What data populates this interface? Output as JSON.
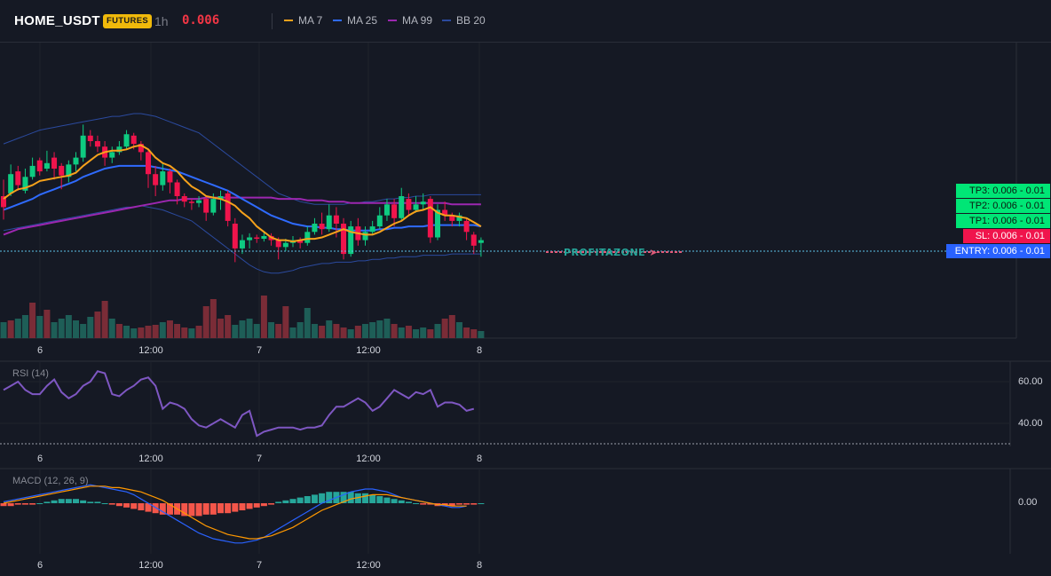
{
  "header": {
    "symbol": "HOME_USDT",
    "badge": "FUTURES",
    "timeframe": "1h",
    "last_price": "0.006"
  },
  "legend": [
    {
      "label": "MA 7",
      "color": "#f7a21b"
    },
    {
      "label": "MA 25",
      "color": "#2f6bff"
    },
    {
      "label": "MA 99",
      "color": "#9c27b0"
    },
    {
      "label": "BB 20",
      "color": "#2b4a9e"
    }
  ],
  "tags": {
    "tp3": "TP3: 0.006 - 0.01",
    "tp2": "TP2: 0.006 - 0.01",
    "tp1": "TP1: 0.006 - 0.01",
    "sl": "SL: 0.006 - 0.01",
    "entry": "ENTRY: 0.006 - 0.01"
  },
  "watermark": "PROFITAZONE",
  "panes": {
    "rsi": {
      "label": "RSI (14)",
      "ticks": [
        "60.00",
        "40.00"
      ]
    },
    "macd": {
      "label": "MACD (12, 26, 9)",
      "ticks": [
        "0.00"
      ]
    }
  },
  "time_labels": [
    "6",
    "12:00",
    "7",
    "12:00",
    "8"
  ],
  "chart_data": {
    "type": "candlestick",
    "interval": "1h",
    "price_note": "all prices display as 0.006 at 3-decimal precision",
    "candles": [
      {
        "o": 40,
        "c": 32,
        "h": 52,
        "l": 23
      },
      {
        "o": 42,
        "c": 56,
        "h": 63,
        "l": 40
      },
      {
        "o": 58,
        "c": 48,
        "h": 62,
        "l": 44
      },
      {
        "o": 44,
        "c": 54,
        "h": 60,
        "l": 42
      },
      {
        "o": 54,
        "c": 62,
        "h": 68,
        "l": 52
      },
      {
        "o": 66,
        "c": 58,
        "h": 68,
        "l": 55
      },
      {
        "o": 60,
        "c": 64,
        "h": 73,
        "l": 58
      },
      {
        "o": 68,
        "c": 60,
        "h": 72,
        "l": 52
      },
      {
        "o": 62,
        "c": 55,
        "h": 64,
        "l": 45
      },
      {
        "o": 54,
        "c": 63,
        "h": 66,
        "l": 50
      },
      {
        "o": 63,
        "c": 68,
        "h": 72,
        "l": 58
      },
      {
        "o": 68,
        "c": 84,
        "h": 92,
        "l": 65
      },
      {
        "o": 84,
        "c": 80,
        "h": 88,
        "l": 76
      },
      {
        "o": 80,
        "c": 76,
        "h": 84,
        "l": 72
      },
      {
        "o": 76,
        "c": 68,
        "h": 80,
        "l": 62
      },
      {
        "o": 68,
        "c": 72,
        "h": 76,
        "l": 64
      },
      {
        "o": 72,
        "c": 76,
        "h": 80,
        "l": 70
      },
      {
        "o": 76,
        "c": 85,
        "h": 88,
        "l": 74
      },
      {
        "o": 84,
        "c": 78,
        "h": 86,
        "l": 74
      },
      {
        "o": 78,
        "c": 72,
        "h": 80,
        "l": 66
      },
      {
        "o": 72,
        "c": 56,
        "h": 74,
        "l": 46
      },
      {
        "o": 56,
        "c": 48,
        "h": 62,
        "l": 40
      },
      {
        "o": 48,
        "c": 58,
        "h": 64,
        "l": 44
      },
      {
        "o": 58,
        "c": 50,
        "h": 60,
        "l": 42
      },
      {
        "o": 50,
        "c": 40,
        "h": 52,
        "l": 34
      },
      {
        "o": 40,
        "c": 36,
        "h": 42,
        "l": 32
      },
      {
        "o": 36,
        "c": 35,
        "h": 38,
        "l": 30
      },
      {
        "o": 35,
        "c": 37,
        "h": 40,
        "l": 32
      },
      {
        "o": 38,
        "c": 28,
        "h": 40,
        "l": 22
      },
      {
        "o": 28,
        "c": 38,
        "h": 42,
        "l": 26
      },
      {
        "o": 38,
        "c": 40,
        "h": 44,
        "l": 30
      },
      {
        "o": 42,
        "c": 22,
        "h": 44,
        "l": 18
      },
      {
        "o": 20,
        "c": 2,
        "h": 24,
        "l": -8
      },
      {
        "o": 2,
        "c": 8,
        "h": 12,
        "l": -2
      },
      {
        "o": 8,
        "c": 10,
        "h": 13,
        "l": 2
      },
      {
        "o": 10,
        "c": 9,
        "h": 12,
        "l": 6
      },
      {
        "o": 9,
        "c": 11,
        "h": 14,
        "l": 7
      },
      {
        "o": 11,
        "c": 8,
        "h": 13,
        "l": 4
      },
      {
        "o": 8,
        "c": 3,
        "h": 10,
        "l": -6
      },
      {
        "o": 3,
        "c": 6,
        "h": 9,
        "l": 0
      },
      {
        "o": 6,
        "c": 8,
        "h": 11,
        "l": 3
      },
      {
        "o": 8,
        "c": 6,
        "h": 10,
        "l": 2
      },
      {
        "o": 6,
        "c": 14,
        "h": 18,
        "l": 4
      },
      {
        "o": 14,
        "c": 20,
        "h": 24,
        "l": 12
      },
      {
        "o": 20,
        "c": 16,
        "h": 28,
        "l": 12
      },
      {
        "o": 16,
        "c": 26,
        "h": 34,
        "l": 14
      },
      {
        "o": 26,
        "c": 20,
        "h": 32,
        "l": 10
      },
      {
        "o": 20,
        "c": -2,
        "h": 24,
        "l": -6
      },
      {
        "o": -2,
        "c": 18,
        "h": 22,
        "l": -4
      },
      {
        "o": 18,
        "c": 8,
        "h": 24,
        "l": 4
      },
      {
        "o": 8,
        "c": 14,
        "h": 18,
        "l": 4
      },
      {
        "o": 14,
        "c": 18,
        "h": 22,
        "l": 12
      },
      {
        "o": 18,
        "c": 26,
        "h": 32,
        "l": 16
      },
      {
        "o": 26,
        "c": 34,
        "h": 38,
        "l": 22
      },
      {
        "o": 34,
        "c": 24,
        "h": 38,
        "l": 18
      },
      {
        "o": 24,
        "c": 40,
        "h": 46,
        "l": 22
      },
      {
        "o": 38,
        "c": 30,
        "h": 42,
        "l": 26
      },
      {
        "o": 30,
        "c": 34,
        "h": 40,
        "l": 28
      },
      {
        "o": 34,
        "c": 36,
        "h": 42,
        "l": 30
      },
      {
        "o": 38,
        "c": 10,
        "h": 40,
        "l": 6
      },
      {
        "o": 10,
        "c": 30,
        "h": 34,
        "l": 8
      },
      {
        "o": 30,
        "c": 26,
        "h": 36,
        "l": 22
      },
      {
        "o": 26,
        "c": 22,
        "h": 28,
        "l": 18
      },
      {
        "o": 22,
        "c": 26,
        "h": 28,
        "l": 18
      },
      {
        "o": 22,
        "c": 14,
        "h": 24,
        "l": 8
      },
      {
        "o": 12,
        "c": 4,
        "h": 14,
        "l": -2
      },
      {
        "o": 6,
        "c": 8,
        "h": 10,
        "l": -4
      }
    ],
    "ma7": [
      38,
      42,
      45,
      46,
      48,
      51,
      52,
      53,
      54,
      55,
      57,
      62,
      66,
      70,
      72,
      73,
      73,
      74,
      76,
      77,
      74,
      68,
      64,
      62,
      58,
      52,
      47,
      44,
      40,
      39,
      38,
      36,
      33,
      28,
      24,
      18,
      14,
      10,
      8,
      8,
      7,
      8,
      9,
      9,
      10,
      12,
      14,
      16,
      14,
      13,
      12,
      12,
      14,
      17,
      20,
      22,
      26,
      29,
      30,
      32,
      28,
      26,
      26,
      25,
      24,
      21,
      18
    ],
    "ma25": [
      30,
      32,
      34,
      36,
      38,
      41,
      43,
      45,
      47,
      49,
      51,
      54,
      56,
      58,
      60,
      61,
      62,
      62,
      62,
      62,
      62,
      61,
      60,
      59,
      58,
      56,
      54,
      52,
      50,
      48,
      46,
      44,
      41,
      38,
      35,
      32,
      29,
      26,
      24,
      22,
      20,
      19,
      18,
      18,
      17,
      17,
      16,
      16,
      15,
      15,
      15,
      15,
      16,
      16,
      17,
      17,
      18,
      18,
      18,
      19,
      19,
      19,
      19,
      19,
      19,
      19,
      18
    ],
    "ma99": [
      12,
      14,
      16,
      17,
      18,
      19,
      20,
      21,
      22,
      23,
      24,
      25,
      26,
      27,
      28,
      29,
      30,
      31,
      32,
      33,
      34,
      35,
      36,
      37,
      37,
      38,
      38,
      38,
      39,
      39,
      39,
      39,
      39,
      39,
      39,
      39,
      39,
      39,
      38,
      38,
      38,
      38,
      37,
      37,
      37,
      36,
      36,
      36,
      35,
      35,
      35,
      35,
      35,
      35,
      35,
      35,
      35,
      35,
      35,
      35,
      35,
      35,
      34,
      34,
      34,
      34,
      34
    ],
    "bb20_upper": [
      78,
      80,
      82,
      84,
      86,
      88,
      89,
      90,
      91,
      92,
      93,
      94,
      95,
      96,
      97,
      98,
      98,
      99,
      100,
      100,
      99,
      98,
      96,
      94,
      92,
      90,
      88,
      86,
      82,
      78,
      74,
      70,
      66,
      62,
      58,
      54,
      50,
      46,
      42,
      40,
      38,
      36,
      35,
      34,
      34,
      34,
      34,
      34,
      35,
      35,
      36,
      36,
      37,
      38,
      38,
      39,
      39,
      40,
      40,
      41,
      41,
      41,
      41,
      41,
      41,
      41,
      41
    ],
    "bb20_lower": [
      15,
      16,
      17,
      18,
      19,
      20,
      21,
      22,
      23,
      24,
      25,
      26,
      27,
      28,
      29,
      30,
      31,
      32,
      32,
      33,
      32,
      31,
      30,
      28,
      26,
      24,
      22,
      18,
      14,
      10,
      6,
      2,
      -2,
      -6,
      -10,
      -13,
      -15,
      -16,
      -16,
      -15,
      -14,
      -12,
      -11,
      -10,
      -9,
      -9,
      -8,
      -8,
      -8,
      -7,
      -7,
      -6,
      -6,
      -5,
      -5,
      -4,
      -4,
      -4,
      -3,
      -3,
      -3,
      -3,
      -2,
      -2,
      -2,
      -2,
      -2
    ],
    "volume": [
      18,
      20,
      22,
      26,
      40,
      25,
      32,
      18,
      22,
      26,
      20,
      16,
      24,
      30,
      42,
      22,
      16,
      14,
      11,
      12,
      14,
      15,
      18,
      20,
      16,
      12,
      11,
      14,
      36,
      44,
      22,
      26,
      15,
      20,
      22,
      16,
      48,
      18,
      16,
      36,
      12,
      18,
      34,
      16,
      14,
      20,
      16,
      12,
      10,
      14,
      16,
      18,
      20,
      22,
      16,
      12,
      14,
      10,
      12,
      10,
      16,
      22,
      26,
      18,
      12,
      10,
      8
    ],
    "volume_up": [
      true,
      false,
      true,
      true,
      false,
      true,
      false,
      true,
      true,
      true,
      true,
      true,
      true,
      false,
      false,
      true,
      false,
      true,
      true,
      false,
      false,
      false,
      true,
      false,
      false,
      false,
      true,
      false,
      false,
      false,
      false,
      false,
      true,
      true,
      true,
      true,
      false,
      true,
      false,
      false,
      true,
      true,
      true,
      true,
      false,
      true,
      false,
      false,
      true,
      false,
      true,
      true,
      true,
      true,
      false,
      true,
      false,
      true,
      true,
      false,
      true,
      false,
      false,
      true,
      false,
      false,
      true
    ],
    "rsi": [
      56,
      58,
      60,
      56,
      54,
      54,
      58,
      61,
      55,
      52,
      54,
      58,
      60,
      65,
      64,
      54,
      53,
      56,
      58,
      61,
      62,
      58,
      47,
      50,
      49,
      47,
      42,
      39,
      38,
      40,
      42,
      40,
      38,
      44,
      46,
      34,
      36,
      37,
      38,
      38,
      38,
      37,
      38,
      38,
      39,
      44,
      48,
      48,
      50,
      52,
      50,
      46,
      48,
      52,
      56,
      54,
      52,
      55,
      54,
      56,
      48,
      50,
      50,
      49,
      46,
      47
    ],
    "rsi_ticks": [
      60,
      40
    ],
    "macd": [
      1,
      2,
      3,
      4,
      5,
      6,
      7,
      8,
      9,
      10,
      11,
      12,
      13,
      12,
      11,
      10,
      9,
      8,
      6,
      3,
      0,
      -3,
      -6,
      -9,
      -12,
      -15,
      -18,
      -21,
      -23,
      -25,
      -26,
      -27,
      -28,
      -28,
      -27,
      -26,
      -24,
      -21,
      -18,
      -15,
      -12,
      -9,
      -6,
      -3,
      0,
      2,
      4,
      6,
      8,
      9,
      10,
      10,
      9,
      8,
      6,
      4,
      3,
      2,
      1,
      0,
      -1,
      -2,
      -3,
      -3,
      -2
    ],
    "macd_signal": [
      0,
      1,
      2,
      3,
      4,
      5,
      6,
      7,
      8,
      9,
      10,
      11,
      12,
      12,
      12,
      11,
      11,
      10,
      9,
      8,
      6,
      4,
      2,
      -1,
      -4,
      -7,
      -10,
      -13,
      -16,
      -18,
      -20,
      -22,
      -23,
      -24,
      -25,
      -25,
      -24,
      -23,
      -21,
      -19,
      -17,
      -14,
      -11,
      -8,
      -5,
      -3,
      -1,
      1,
      3,
      4,
      5,
      6,
      6,
      6,
      5,
      4,
      3,
      2,
      1,
      0,
      -1,
      -1,
      -2,
      -2,
      -2
    ],
    "macd_hist": [
      -2,
      -2,
      -1,
      -1,
      -1,
      0,
      1,
      2,
      3,
      3,
      3,
      2,
      1,
      1,
      0,
      -1,
      -2,
      -3,
      -4,
      -5,
      -6,
      -7,
      -8,
      -8,
      -8,
      -9,
      -9,
      -9,
      -8,
      -8,
      -7,
      -7,
      -6,
      -5,
      -4,
      -3,
      -2,
      -1,
      1,
      2,
      3,
      4,
      5,
      6,
      7,
      8,
      8,
      8,
      8,
      7,
      7,
      6,
      5,
      4,
      3,
      2,
      1,
      0,
      -1,
      -1,
      -2,
      -2,
      -2,
      -1,
      -1,
      -1,
      0
    ]
  }
}
